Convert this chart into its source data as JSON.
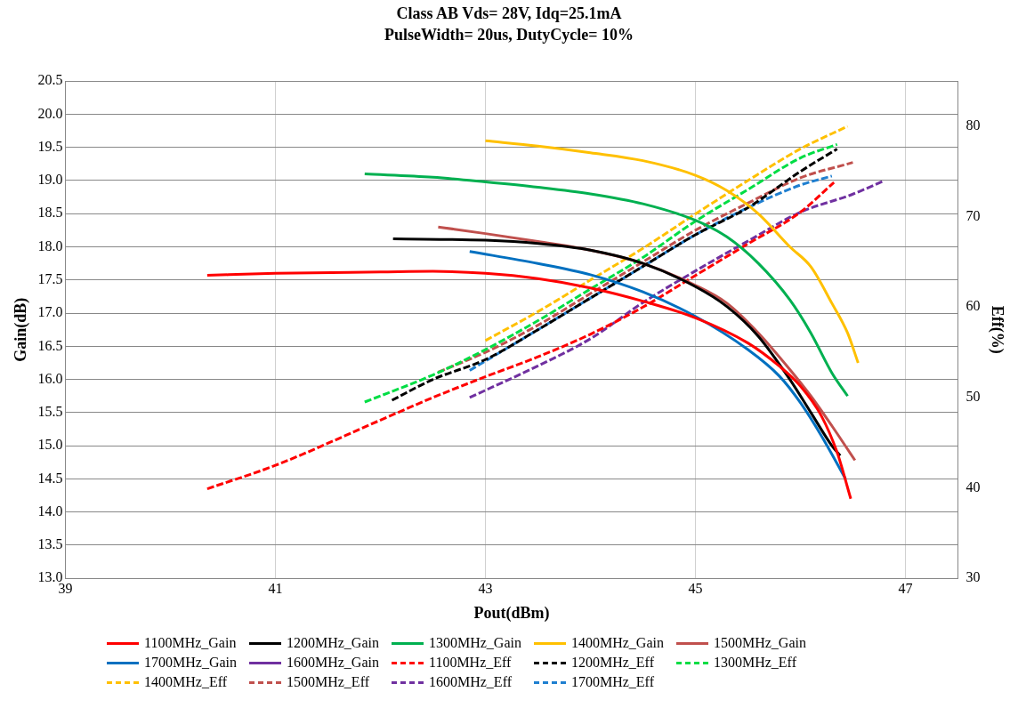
{
  "chart_data": {
    "type": "line",
    "title": "Class AB Vds= 28V, Idq=25.1mA",
    "subtitle": "PulseWidth= 20us, DutyCycle= 10%",
    "xlabel": "Pout(dBm)",
    "ylabel": "Gain(dB)",
    "y2label": "Eff(%)",
    "xlim": [
      39,
      47.5
    ],
    "xticks": [
      39,
      41,
      43,
      45,
      47
    ],
    "ylim": [
      13,
      20.5
    ],
    "yticks": [
      {
        "value": 13,
        "label": "13.0"
      },
      {
        "value": 13.5,
        "label": "13.5"
      },
      {
        "value": 14,
        "label": "14.0"
      },
      {
        "value": 14.5,
        "label": "14.5"
      },
      {
        "value": 15,
        "label": "15.0"
      },
      {
        "value": 15.5,
        "label": "15.5"
      },
      {
        "value": 16,
        "label": "16.0"
      },
      {
        "value": 16.5,
        "label": "16.5"
      },
      {
        "value": 17,
        "label": "17.0"
      },
      {
        "value": 17.5,
        "label": "17.5"
      },
      {
        "value": 18,
        "label": "18.0"
      },
      {
        "value": 18.5,
        "label": "18.5"
      },
      {
        "value": 19,
        "label": "19.0"
      },
      {
        "value": 19.5,
        "label": "19.5"
      },
      {
        "value": 20,
        "label": "20.0"
      },
      {
        "value": 20.5,
        "label": "20.5"
      }
    ],
    "y2lim": [
      30,
      85
    ],
    "y2ticks": [
      30,
      40,
      50,
      60,
      70,
      80
    ],
    "grid": true,
    "legend": "bottom",
    "marker": "none",
    "series": [
      {
        "name": "1100MHz_Gain",
        "color": "#ff0000",
        "line_style": "solid",
        "x": [
          40.35,
          41,
          42,
          42.5,
          43,
          43.5,
          44,
          44.5,
          45,
          45.5,
          45.8,
          46,
          46.2,
          46.35,
          46.48
        ],
        "values": [
          17.57,
          17.6,
          17.62,
          17.63,
          17.6,
          17.52,
          17.38,
          17.18,
          16.93,
          16.55,
          16.2,
          15.9,
          15.45,
          14.9,
          14.2
        ]
      },
      {
        "name": "1200MHz_Gain",
        "color": "#000000",
        "line_style": "solid",
        "x": [
          42.12,
          43,
          43.5,
          44,
          44.5,
          45,
          45.3,
          45.6,
          45.9,
          46.1,
          46.3,
          46.38
        ],
        "values": [
          18.12,
          18.1,
          18.05,
          17.95,
          17.75,
          17.4,
          17.1,
          16.65,
          16.0,
          15.5,
          15.0,
          14.85
        ]
      },
      {
        "name": "1300MHz_Gain",
        "color": "#00b050",
        "line_style": "solid",
        "x": [
          41.85,
          42.5,
          43,
          43.5,
          44,
          44.5,
          45,
          45.3,
          45.6,
          45.9,
          46.1,
          46.3,
          46.45
        ],
        "values": [
          19.1,
          19.05,
          18.98,
          18.9,
          18.8,
          18.65,
          18.4,
          18.15,
          17.75,
          17.2,
          16.7,
          16.1,
          15.75
        ]
      },
      {
        "name": "1400MHz_Gain",
        "color": "#ffc000",
        "line_style": "solid",
        "x": [
          43,
          43.5,
          44,
          44.5,
          45,
          45.3,
          45.6,
          45.9,
          46.1,
          46.3,
          46.45,
          46.55
        ],
        "values": [
          19.6,
          19.52,
          19.42,
          19.3,
          19.08,
          18.85,
          18.5,
          18.0,
          17.7,
          17.15,
          16.7,
          16.25
        ]
      },
      {
        "name": "1500MHz_Gain",
        "color": "#c0504d",
        "line_style": "solid",
        "x": [
          42.55,
          43,
          43.5,
          44,
          44.5,
          45,
          45.3,
          45.6,
          45.9,
          46.1,
          46.3,
          46.52
        ],
        "values": [
          18.3,
          18.2,
          18.08,
          17.95,
          17.75,
          17.42,
          17.15,
          16.7,
          16.15,
          15.75,
          15.3,
          14.78
        ]
      },
      {
        "name": "1700MHz_Gain",
        "color": "#0070c0",
        "line_style": "solid",
        "x": [
          42.85,
          43.5,
          44,
          44.5,
          45,
          45.5,
          45.8,
          46,
          46.2,
          46.43
        ],
        "values": [
          17.93,
          17.75,
          17.58,
          17.32,
          16.95,
          16.45,
          16.05,
          15.65,
          15.15,
          14.5
        ]
      },
      {
        "name": "1600MHz_Gain",
        "color": "#7030a0",
        "line_style": "solid"
      },
      {
        "name": "1100MHz_Eff",
        "color": "#ff0000",
        "line_style": "dashed",
        "axis": "y2",
        "x": [
          40.35,
          41,
          42,
          42.5,
          43,
          43.5,
          44,
          44.5,
          45,
          45.5,
          46,
          46.32
        ],
        "values": [
          39.9,
          42.5,
          47.5,
          50,
          52.3,
          54.5,
          57,
          60,
          63.5,
          67,
          70.5,
          73.8
        ]
      },
      {
        "name": "1200MHz_Eff",
        "color": "#000000",
        "line_style": "dashed",
        "axis": "y2",
        "x": [
          42.11,
          42.5,
          43,
          43.5,
          44,
          44.5,
          45,
          45.5,
          46,
          46.35
        ],
        "values": [
          49.7,
          52,
          54.2,
          57.5,
          61,
          64.5,
          68,
          71,
          75,
          77.5
        ]
      },
      {
        "name": "1300MHz_Eff",
        "color": "#00dd44",
        "line_style": "dashed",
        "axis": "y2",
        "x": [
          41.85,
          42.5,
          43,
          43.5,
          44,
          44.5,
          45,
          45.5,
          46,
          46.35
        ],
        "values": [
          49.5,
          52.5,
          55.3,
          58.5,
          62,
          65.5,
          69.5,
          73,
          76.5,
          78
        ]
      },
      {
        "name": "1400MHz_Eff",
        "color": "#ffc000",
        "line_style": "dashed",
        "axis": "y2",
        "x": [
          43,
          43.5,
          44,
          44.5,
          45,
          45.5,
          46,
          46.45
        ],
        "values": [
          56.3,
          59.5,
          63,
          66.5,
          70.3,
          74,
          77.5,
          80
        ]
      },
      {
        "name": "1500MHz_Eff",
        "color": "#c0504d",
        "line_style": "dashed",
        "axis": "y2",
        "x": [
          42.55,
          43,
          43.5,
          44,
          44.5,
          45,
          45.5,
          46,
          46.5
        ],
        "values": [
          52.8,
          55,
          58,
          61.5,
          65,
          68.5,
          71.5,
          74.3,
          76
        ]
      },
      {
        "name": "1600MHz_Eff",
        "color": "#7030a0",
        "line_style": "dashed",
        "axis": "y2",
        "x": [
          42.85,
          43.5,
          44,
          44.5,
          45,
          45.5,
          46,
          46.5,
          46.8
        ],
        "values": [
          50,
          53.5,
          56.5,
          60.5,
          64,
          67.3,
          70.5,
          72.5,
          74
        ]
      },
      {
        "name": "1700MHz_Eff",
        "color": "#1f7fd0",
        "line_style": "dashed",
        "axis": "y2",
        "x": [
          42.85,
          43.5,
          44,
          44.5,
          45,
          45.5,
          46,
          46.3
        ],
        "values": [
          53,
          57.5,
          61,
          64.5,
          68,
          71,
          73.5,
          74.5
        ]
      }
    ]
  }
}
